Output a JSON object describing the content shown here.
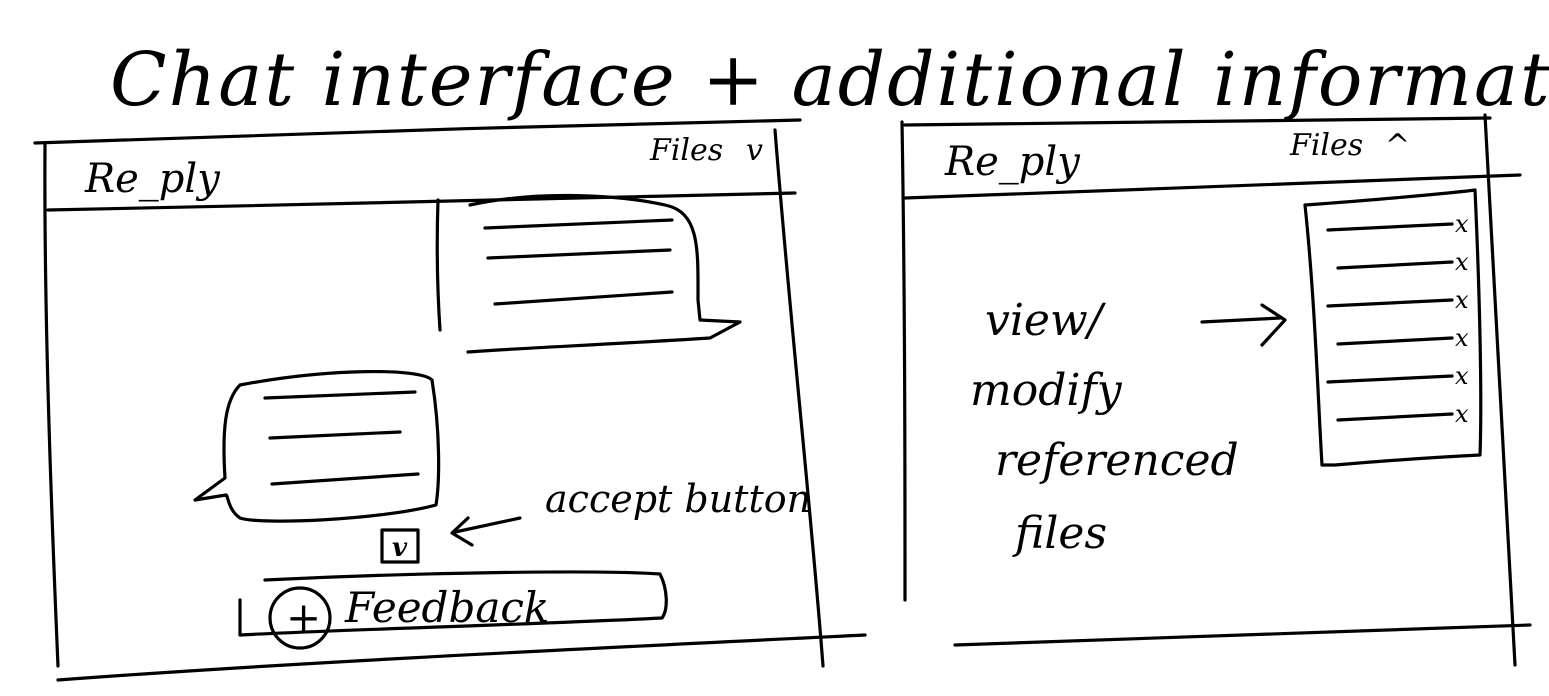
{
  "page_title": "Chat interface + additional information",
  "left_frame": {
    "app_title": "Re_ply",
    "files_toggle": {
      "label": "Files",
      "chevron": "v"
    },
    "accept_annotation": "accept button",
    "accept_icon": "checkbox-checked-icon",
    "accept_mark": "v",
    "feedback": {
      "plus": "+",
      "label": "Feedback"
    }
  },
  "right_frame": {
    "app_title": "Re_ply",
    "files_toggle": {
      "label": "Files",
      "chevron": "^"
    },
    "annotation_lines": [
      "view/",
      "modify",
      "referenced",
      "files"
    ],
    "file_remove_glyph": "x",
    "file_count": 6
  }
}
